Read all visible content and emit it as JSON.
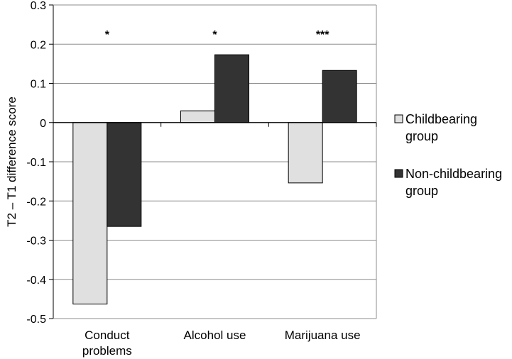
{
  "chart_data": {
    "type": "bar",
    "title": "",
    "xlabel": "",
    "ylabel": "T2 – T1 difference score",
    "ylim": [
      -0.5,
      0.3
    ],
    "yticks": [
      "0.3",
      "0.2",
      "0.1",
      "0",
      "-0.1",
      "-0.2",
      "-0.3",
      "-0.4",
      "-0.5"
    ],
    "categories": [
      [
        "Conduct",
        "problems"
      ],
      [
        "Alcohol use"
      ],
      [
        "Marijuana use"
      ]
    ],
    "significance": [
      "*",
      "*",
      "***"
    ],
    "series": [
      {
        "name": [
          "Childbearing",
          "group"
        ],
        "values": [
          -0.463,
          0.03,
          -0.154
        ],
        "color": "#e0e0e0"
      },
      {
        "name": [
          "Non-childbearing",
          "group"
        ],
        "values": [
          -0.265,
          0.173,
          0.133
        ],
        "color": "#333333"
      }
    ],
    "grid": true,
    "legend_position": "right"
  }
}
